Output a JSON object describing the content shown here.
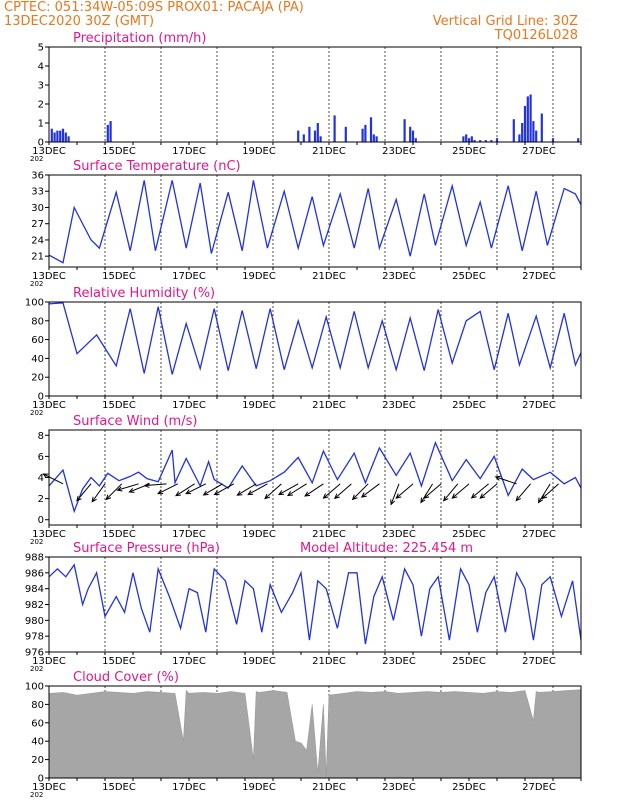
{
  "header": {
    "line1_left": "CPTEC:   051:34W-05:09S   PROX01: PACAJA (PA)",
    "line2_left": "13DEC2020 30Z (GMT)",
    "line2_right": "Vertical Grid Line: 30Z",
    "line3_right": "TQ0126L028"
  },
  "colors": {
    "header": "#e8781e",
    "title": "#e0188c",
    "line": "#2233dd",
    "cloud": "#a6a6a6",
    "grid": "#000000"
  },
  "chart_data": [
    {
      "type": "bar",
      "title": "Precipitation (mm/h)",
      "ylim": [
        0,
        5
      ],
      "yticks": [
        "0",
        "1",
        "2",
        "3",
        "4",
        "5"
      ],
      "x_tick_labels": [
        "13DEC",
        "15DEC",
        "17DEC",
        "19DEC",
        "21DEC",
        "23DEC",
        "25DEC",
        "27DEC"
      ],
      "x_year_label": "202",
      "x": [
        0.1,
        0.2,
        0.3,
        0.4,
        0.5,
        0.6,
        0.7,
        2.1,
        2.2,
        8.9,
        9.1,
        9.3,
        9.5,
        9.6,
        9.7,
        10.2,
        10.6,
        11.2,
        11.3,
        11.5,
        11.6,
        11.7,
        12.7,
        12.9,
        13.0,
        13.1,
        14.8,
        14.9,
        15.0,
        15.1,
        15.2,
        15.4,
        15.6,
        15.8,
        16.0,
        16.6,
        16.8,
        16.9,
        17.0,
        17.1,
        17.2,
        17.3,
        17.4,
        17.6,
        18.0,
        18.9
      ],
      "values": [
        0.7,
        0.5,
        0.6,
        0.6,
        0.7,
        0.5,
        0.3,
        0.9,
        1.1,
        0.6,
        0.4,
        0.8,
        0.6,
        1.0,
        0.3,
        1.4,
        0.8,
        0.7,
        0.9,
        1.3,
        0.4,
        0.3,
        1.2,
        0.8,
        0.6,
        0.2,
        0.3,
        0.4,
        0.2,
        0.3,
        0.1,
        0.1,
        0.1,
        0.1,
        0.2,
        1.2,
        0.4,
        1.0,
        1.9,
        2.4,
        2.5,
        1.1,
        0.6,
        1.5,
        0.2,
        0.2
      ]
    },
    {
      "type": "line",
      "title": "Surface Temperature (nC)",
      "ylim": [
        19,
        36
      ],
      "yticks": [
        "21",
        "24",
        "27",
        "30",
        "33",
        "36"
      ],
      "x_tick_labels": [
        "13DEC",
        "15DEC",
        "17DEC",
        "19DEC",
        "21DEC",
        "23DEC",
        "25DEC",
        "27DEC"
      ],
      "x_year_label": "202",
      "x": [
        0,
        0.5,
        0.9,
        1.5,
        1.8,
        2.4,
        2.9,
        3.4,
        3.8,
        4.4,
        4.9,
        5.4,
        5.8,
        6.4,
        6.9,
        7.3,
        7.8,
        8.4,
        8.9,
        9.4,
        9.8,
        10.4,
        10.9,
        11.4,
        11.8,
        12.4,
        12.9,
        13.4,
        13.8,
        14.4,
        14.9,
        15.4,
        15.8,
        16.4,
        16.9,
        17.4,
        17.8,
        18.4,
        18.8,
        19.0
      ],
      "values": [
        21.2,
        19.8,
        30.0,
        24.0,
        22.5,
        32.8,
        22.0,
        35.0,
        22.0,
        35.0,
        22.5,
        34.5,
        21.5,
        32.8,
        22.0,
        35.0,
        22.5,
        33.0,
        22.5,
        32.0,
        23.0,
        32.5,
        22.5,
        33.5,
        22.5,
        31.5,
        21.0,
        32.5,
        23.0,
        34.0,
        23.0,
        31.0,
        22.5,
        34.0,
        22.0,
        33.0,
        23.0,
        33.5,
        32.5,
        30.5
      ]
    },
    {
      "type": "line",
      "title": "Relative Humidity (%)",
      "ylim": [
        0,
        100
      ],
      "yticks": [
        "0",
        "20",
        "40",
        "60",
        "80",
        "100"
      ],
      "x_tick_labels": [
        "13DEC",
        "15DEC",
        "17DEC",
        "19DEC",
        "21DEC",
        "23DEC",
        "25DEC",
        "27DEC"
      ],
      "x_year_label": "202",
      "x": [
        0,
        0.5,
        1.0,
        1.7,
        2.4,
        2.9,
        3.4,
        3.9,
        4.4,
        4.9,
        5.4,
        5.9,
        6.4,
        6.9,
        7.4,
        7.9,
        8.4,
        8.9,
        9.4,
        9.9,
        10.4,
        10.9,
        11.4,
        11.9,
        12.4,
        12.9,
        13.4,
        13.9,
        14.4,
        14.9,
        15.4,
        15.9,
        16.4,
        16.8,
        17.4,
        17.9,
        18.4,
        18.8,
        19.0
      ],
      "values": [
        98,
        99,
        45,
        65,
        32,
        93,
        24,
        95,
        23,
        77,
        29,
        93,
        27,
        91,
        29,
        93,
        28,
        80,
        30,
        84,
        30,
        90,
        30,
        80,
        28,
        83,
        27,
        92,
        35,
        80,
        90,
        28,
        88,
        33,
        85,
        30,
        88,
        33,
        46
      ]
    },
    {
      "type": "line",
      "title": "Surface Wind (m/s)",
      "ylim": [
        -0.5,
        8.5
      ],
      "yticks": [
        "0",
        "2",
        "4",
        "6",
        "8"
      ],
      "x_tick_labels": [
        "13DEC",
        "15DEC",
        "17DEC",
        "19DEC",
        "21DEC",
        "23DEC",
        "25DEC",
        "27DEC"
      ],
      "x_year_label": "202",
      "x": [
        0,
        0.5,
        0.9,
        1.2,
        1.5,
        1.8,
        2.1,
        2.5,
        2.9,
        3.2,
        3.5,
        3.9,
        4.4,
        4.5,
        4.9,
        5.4,
        5.7,
        5.9,
        6.4,
        6.9,
        7.4,
        7.9,
        8.4,
        8.9,
        9.4,
        9.8,
        10.3,
        10.9,
        11.3,
        11.8,
        12.4,
        12.9,
        13.3,
        13.8,
        14.4,
        14.9,
        15.4,
        15.9,
        16.4,
        16.9,
        17.3,
        17.9,
        18.4,
        18.8,
        19.0
      ],
      "values": [
        3.2,
        4.7,
        0.8,
        2.9,
        4.0,
        3.2,
        4.4,
        3.7,
        4.1,
        4.5,
        3.9,
        3.6,
        6.6,
        3.5,
        5.8,
        3.2,
        5.5,
        3.8,
        3.0,
        5.1,
        3.2,
        3.7,
        4.5,
        5.9,
        3.5,
        6.5,
        3.8,
        6.3,
        3.5,
        6.8,
        4.2,
        6.3,
        3.2,
        7.3,
        3.7,
        5.7,
        3.9,
        6.0,
        2.3,
        4.8,
        3.8,
        4.5,
        3.4,
        4.0,
        3.0
      ],
      "arrows": {
        "x": [
          0.5,
          1.5,
          2.0,
          2.6,
          3.2,
          3.6,
          4.2,
          4.6,
          5.2,
          5.6,
          6.2,
          6.6,
          7.4,
          7.8,
          8.3,
          8.9,
          9.2,
          9.8,
          10.4,
          10.8,
          11.4,
          11.8,
          12.5,
          13.0,
          13.7,
          14.0,
          14.6,
          15.0,
          15.7,
          16.0,
          16.7,
          17.2,
          17.9,
          18.2
        ],
        "u": [
          -0.8,
          -0.5,
          -0.5,
          -0.6,
          -1.0,
          -1.0,
          -1.2,
          -1.0,
          -1.1,
          -1.0,
          -1.2,
          -0.9,
          -1.0,
          -0.9,
          -1.0,
          -0.9,
          -0.8,
          -0.9,
          -0.7,
          -0.8,
          -0.6,
          -0.8,
          -0.5,
          -0.7,
          -0.5,
          -0.7,
          -0.5,
          -0.7,
          -0.6,
          -0.7,
          -0.9,
          -0.6,
          -0.5,
          -0.9
        ],
        "v": [
          0.4,
          -0.6,
          -0.7,
          -0.6,
          -0.3,
          -0.4,
          -0.1,
          -0.5,
          -0.7,
          -0.5,
          -0.7,
          -0.5,
          -0.6,
          -0.5,
          -0.9,
          -0.5,
          -0.5,
          -0.6,
          -0.6,
          -0.7,
          -0.6,
          -0.6,
          -1.3,
          -0.6,
          -0.8,
          -0.6,
          -0.6,
          -0.6,
          -0.5,
          -0.6,
          0.3,
          -0.7,
          -0.8,
          -0.8
        ]
      }
    },
    {
      "type": "line",
      "title": "Surface Pressure (hPa)",
      "annotation": "Model Altitude: 225.454  m",
      "ylim": [
        976,
        988
      ],
      "yticks": [
        "976",
        "978",
        "980",
        "982",
        "984",
        "986",
        "988"
      ],
      "x_tick_labels": [
        "13DEC",
        "15DEC",
        "17DEC",
        "19DEC",
        "21DEC",
        "23DEC",
        "25DEC",
        "27DEC"
      ],
      "x_year_label": "202",
      "x": [
        0,
        0.3,
        0.6,
        0.9,
        1.2,
        1.4,
        1.7,
        2.0,
        2.4,
        2.7,
        3.0,
        3.3,
        3.6,
        3.9,
        4.3,
        4.7,
        5.0,
        5.3,
        5.6,
        5.9,
        6.3,
        6.7,
        7.0,
        7.3,
        7.6,
        7.9,
        8.3,
        8.7,
        9.0,
        9.3,
        9.6,
        9.9,
        10.3,
        10.7,
        11.0,
        11.3,
        11.6,
        11.9,
        12.3,
        12.7,
        13.0,
        13.3,
        13.6,
        13.9,
        14.3,
        14.7,
        15.0,
        15.3,
        15.6,
        15.9,
        16.3,
        16.7,
        17.0,
        17.3,
        17.6,
        17.9,
        18.3,
        18.7,
        19.0
      ],
      "values": [
        985.5,
        986.5,
        985.5,
        987.0,
        982.0,
        984.0,
        986.0,
        980.5,
        983.0,
        981.0,
        986.0,
        981.5,
        978.5,
        986.5,
        983.0,
        979.0,
        984.0,
        983.5,
        978.5,
        986.5,
        985.0,
        979.5,
        985.0,
        984.0,
        978.5,
        984.5,
        981.0,
        983.5,
        986.0,
        977.5,
        985.0,
        984.0,
        979.0,
        986.0,
        986.0,
        977.0,
        983.0,
        985.5,
        980.0,
        986.5,
        984.5,
        978.0,
        984.0,
        985.5,
        977.5,
        986.5,
        984.5,
        978.5,
        983.5,
        985.5,
        978.5,
        986.0,
        984.0,
        977.5,
        984.5,
        985.5,
        980.5,
        985.0,
        977.5
      ]
    },
    {
      "type": "area",
      "title": "Cloud Cover (%)",
      "ylim": [
        0,
        100
      ],
      "yticks": [
        "0",
        "20",
        "40",
        "60",
        "80",
        "100"
      ],
      "x_tick_labels": [
        "13DEC",
        "15DEC",
        "17DEC",
        "19DEC",
        "21DEC",
        "23DEC",
        "25DEC",
        "27DEC"
      ],
      "x_year_label": "202",
      "x": [
        0,
        0.5,
        1.0,
        1.5,
        2.0,
        2.5,
        3.0,
        3.5,
        4.0,
        4.5,
        4.8,
        4.9,
        5.0,
        5.5,
        6.0,
        6.5,
        7.0,
        7.3,
        7.4,
        7.5,
        8.0,
        8.5,
        8.8,
        9.0,
        9.2,
        9.4,
        9.6,
        9.8,
        9.9,
        10.0,
        10.5,
        11.0,
        11.5,
        12.0,
        12.5,
        13.0,
        13.5,
        14.0,
        14.5,
        15.0,
        15.5,
        16.0,
        16.5,
        17.0,
        17.3,
        17.4,
        17.5,
        18.0,
        18.5,
        19.0
      ],
      "values": [
        92,
        93,
        90,
        92,
        94,
        93,
        92,
        94,
        93,
        92,
        40,
        95,
        92,
        93,
        92,
        94,
        92,
        20,
        94,
        93,
        95,
        93,
        40,
        38,
        30,
        80,
        5,
        80,
        2,
        90,
        92,
        94,
        93,
        94,
        92,
        93,
        94,
        93,
        94,
        93,
        92,
        94,
        93,
        95,
        62,
        94,
        93,
        94,
        95,
        96
      ]
    }
  ]
}
